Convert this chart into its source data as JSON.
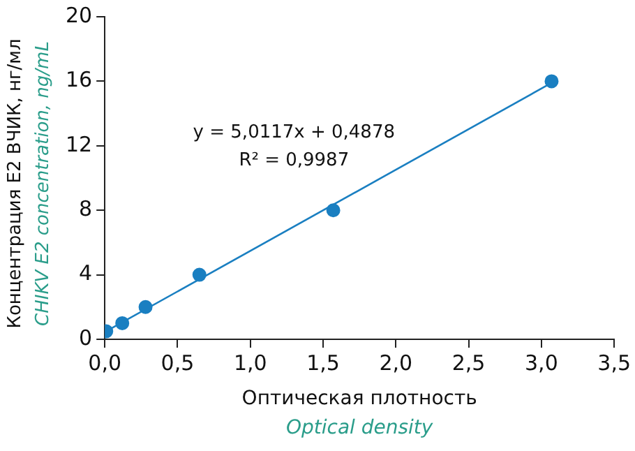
{
  "chart_data": {
    "type": "scatter",
    "xlabel": "Оптическая плотность\nOptical density",
    "ylabel": "Концентрация E2 ВЧИК, нг/мл\nCHIKV E2 concentration, ng/mL",
    "series": [
      {
        "color": "#1a7fc1",
        "x": [
          0.01,
          0.12,
          0.28,
          0.65,
          1.57,
          3.07
        ],
        "values": [
          0.5,
          1,
          2,
          4,
          8,
          16
        ],
        "marker": "circle"
      },
      {
        "type": "line",
        "color": "#1a7fc1",
        "x": [
          0.01,
          3.07
        ],
        "values": [
          0.5,
          15.9
        ]
      }
    ],
    "annotations": [
      "y = 5,0117x + 0,4878",
      "R² = 0,9987"
    ],
    "xlim": [
      0,
      3.5
    ],
    "xticks": [
      {
        "value": 0,
        "label": "0,0"
      },
      {
        "value": 0.5,
        "label": "0,5"
      },
      {
        "value": 1,
        "label": "1,0"
      },
      {
        "value": 1.5,
        "label": "1,5"
      },
      {
        "value": 2,
        "label": "2,0"
      },
      {
        "value": 2.5,
        "label": "2,5"
      },
      {
        "value": 3,
        "label": "3,0"
      },
      {
        "value": 3.5,
        "label": "3,5"
      }
    ],
    "ylim": [
      0,
      20
    ],
    "yticks": [
      0,
      4,
      8,
      12,
      16,
      20
    ],
    "legend": false
  }
}
